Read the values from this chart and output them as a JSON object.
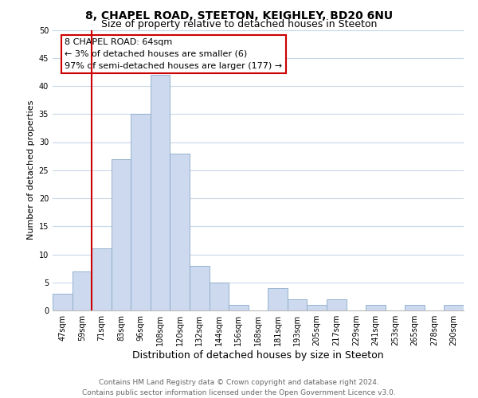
{
  "title": "8, CHAPEL ROAD, STEETON, KEIGHLEY, BD20 6NU",
  "subtitle": "Size of property relative to detached houses in Steeton",
  "xlabel": "Distribution of detached houses by size in Steeton",
  "ylabel": "Number of detached properties",
  "bin_labels": [
    "47sqm",
    "59sqm",
    "71sqm",
    "83sqm",
    "96sqm",
    "108sqm",
    "120sqm",
    "132sqm",
    "144sqm",
    "156sqm",
    "168sqm",
    "181sqm",
    "193sqm",
    "205sqm",
    "217sqm",
    "229sqm",
    "241sqm",
    "253sqm",
    "265sqm",
    "278sqm",
    "290sqm"
  ],
  "bar_heights": [
    3,
    7,
    11,
    27,
    35,
    42,
    28,
    8,
    5,
    1,
    0,
    4,
    2,
    1,
    2,
    0,
    1,
    0,
    1,
    0,
    1
  ],
  "bar_color": "#ccd9ee",
  "bar_edge_color": "#8aaac8",
  "vline_x_index": 1,
  "vline_color": "#cc0000",
  "ylim": [
    0,
    50
  ],
  "yticks": [
    0,
    5,
    10,
    15,
    20,
    25,
    30,
    35,
    40,
    45,
    50
  ],
  "annotation_title": "8 CHAPEL ROAD: 64sqm",
  "annotation_line1": "← 3% of detached houses are smaller (6)",
  "annotation_line2": "97% of semi-detached houses are larger (177) →",
  "annotation_box_color": "#ffffff",
  "annotation_box_edge": "#cc0000",
  "footer_line1": "Contains HM Land Registry data © Crown copyright and database right 2024.",
  "footer_line2": "Contains public sector information licensed under the Open Government Licence v3.0.",
  "bg_color": "#ffffff",
  "grid_color": "#c8d8e8",
  "title_fontsize": 10,
  "subtitle_fontsize": 9,
  "xlabel_fontsize": 9,
  "ylabel_fontsize": 8,
  "tick_fontsize": 7,
  "footer_fontsize": 6.5,
  "annotation_fontsize": 8
}
